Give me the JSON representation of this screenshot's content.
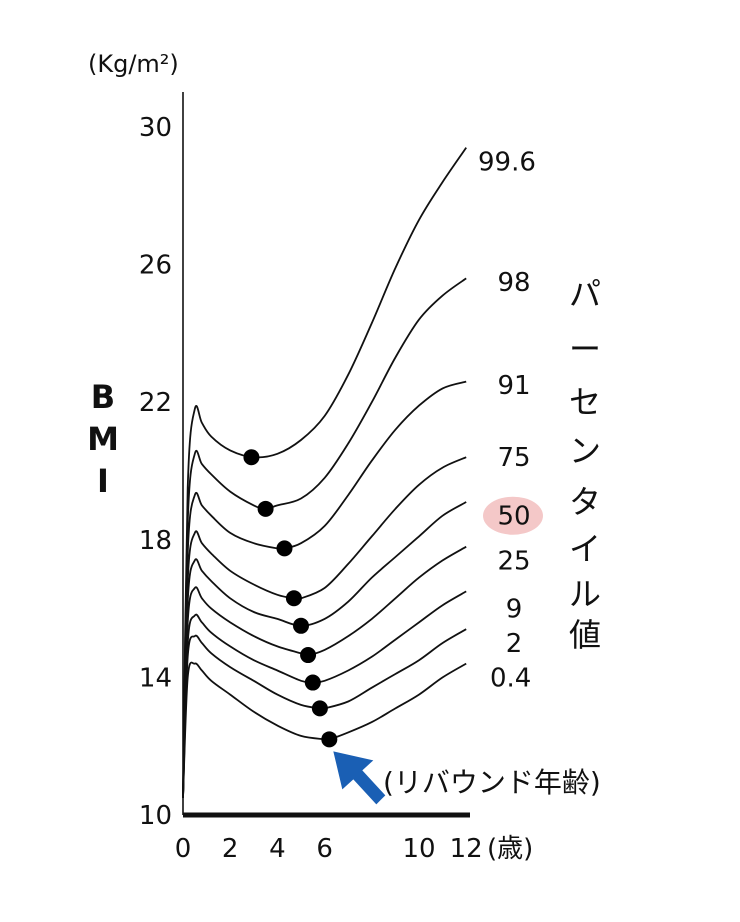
{
  "chart_data": {
    "type": "line",
    "unit_label": "(Kg/m²)",
    "ylabel_chars": [
      "B",
      "M",
      "I"
    ],
    "xunit_label": "(歳)",
    "vertical_label_chars": [
      "パ",
      "ー",
      "セ",
      "ン",
      "タ",
      "イ",
      "ル",
      "値"
    ],
    "x_ticks": [
      "0",
      "2",
      "4",
      "6",
      "10",
      "12"
    ],
    "y_ticks": [
      "10",
      "14",
      "18",
      "22",
      "26",
      "30"
    ],
    "xlim": [
      0,
      12
    ],
    "ylim": [
      10,
      30
    ],
    "highlight_color": "#f4c8c8",
    "arrow_color": "#1a5fb4",
    "annotation": {
      "label": "(リバウンド年齢)",
      "x": 6.2,
      "y": 12.2
    },
    "series": [
      {
        "label": "99.6",
        "x": [
          0,
          0.2,
          0.5,
          0.8,
          1.2,
          2,
          3,
          4,
          5,
          6,
          7,
          8,
          9,
          10,
          11,
          12
        ],
        "y": [
          10.5,
          19.5,
          21.8,
          21.4,
          21.0,
          20.6,
          20.4,
          20.5,
          20.9,
          21.6,
          22.8,
          24.3,
          25.9,
          27.3,
          28.4,
          29.4
        ]
      },
      {
        "label": "98",
        "x": [
          0,
          0.2,
          0.5,
          0.8,
          1.2,
          2,
          3,
          3.5,
          4,
          5,
          6,
          7,
          8,
          9,
          10,
          11,
          12
        ],
        "y": [
          10.5,
          18.5,
          20.5,
          20.2,
          19.9,
          19.4,
          19.0,
          18.9,
          19.0,
          19.2,
          19.8,
          20.8,
          22.0,
          23.3,
          24.4,
          25.1,
          25.6
        ]
      },
      {
        "label": "91",
        "x": [
          0,
          0.2,
          0.5,
          0.8,
          1.2,
          2,
          3,
          4,
          4.3,
          5,
          6,
          7,
          8,
          9,
          10,
          11,
          12
        ],
        "y": [
          10.5,
          17.6,
          19.3,
          19.0,
          18.7,
          18.2,
          17.9,
          17.75,
          17.75,
          17.9,
          18.4,
          19.3,
          20.3,
          21.2,
          21.9,
          22.4,
          22.6
        ]
      },
      {
        "label": "75",
        "x": [
          0,
          0.2,
          0.5,
          0.8,
          1.2,
          2,
          3,
          4,
          4.7,
          5,
          6,
          7,
          8,
          9,
          10,
          11,
          12
        ],
        "y": [
          10.5,
          16.8,
          18.2,
          17.9,
          17.6,
          17.1,
          16.7,
          16.4,
          16.3,
          16.3,
          16.6,
          17.3,
          18.1,
          18.9,
          19.6,
          20.1,
          20.4
        ]
      },
      {
        "label": "50",
        "x": [
          0,
          0.2,
          0.5,
          0.8,
          1.2,
          2,
          3,
          4,
          5,
          6,
          7,
          8,
          9,
          10,
          11,
          12
        ],
        "y": [
          10.5,
          16.2,
          17.4,
          17.1,
          16.8,
          16.3,
          15.9,
          15.7,
          15.5,
          15.7,
          16.2,
          16.9,
          17.5,
          18.1,
          18.7,
          19.1
        ]
      },
      {
        "label": "25",
        "x": [
          0,
          0.2,
          0.5,
          0.8,
          1.2,
          2,
          3,
          4,
          5,
          5.3,
          6,
          7,
          8,
          9,
          10,
          11,
          12
        ],
        "y": [
          10.5,
          15.6,
          16.6,
          16.3,
          16.0,
          15.6,
          15.2,
          14.9,
          14.7,
          14.65,
          14.8,
          15.2,
          15.7,
          16.3,
          16.9,
          17.4,
          17.8
        ]
      },
      {
        "label": "9",
        "x": [
          0,
          0.2,
          0.5,
          0.8,
          1.2,
          2,
          3,
          4,
          5,
          5.5,
          6,
          7,
          8,
          9,
          10,
          11,
          12
        ],
        "y": [
          10.5,
          15.0,
          15.8,
          15.6,
          15.3,
          14.9,
          14.5,
          14.2,
          13.9,
          13.85,
          13.9,
          14.2,
          14.6,
          15.1,
          15.6,
          16.1,
          16.5
        ]
      },
      {
        "label": "2",
        "x": [
          0,
          0.2,
          0.5,
          0.8,
          1.2,
          2,
          3,
          4,
          5,
          5.8,
          6,
          7,
          8,
          9,
          10,
          11,
          12
        ],
        "y": [
          10.5,
          14.6,
          15.2,
          15.0,
          14.7,
          14.3,
          13.9,
          13.5,
          13.2,
          13.1,
          13.1,
          13.3,
          13.7,
          14.1,
          14.5,
          15.0,
          15.4
        ]
      },
      {
        "label": "0.4",
        "x": [
          0,
          0.2,
          0.5,
          0.8,
          1.2,
          2,
          3,
          4,
          5,
          6,
          6.2,
          7,
          8,
          9,
          10,
          11,
          12
        ],
        "y": [
          10.5,
          14.0,
          14.4,
          14.2,
          13.9,
          13.5,
          13.0,
          12.6,
          12.3,
          12.2,
          12.2,
          12.4,
          12.7,
          13.1,
          13.5,
          14.0,
          14.4
        ]
      }
    ],
    "rebound_points": [
      {
        "x": 2.9,
        "y": 20.4
      },
      {
        "x": 3.5,
        "y": 18.9
      },
      {
        "x": 4.3,
        "y": 17.75
      },
      {
        "x": 4.7,
        "y": 16.3
      },
      {
        "x": 5.0,
        "y": 15.5
      },
      {
        "x": 5.3,
        "y": 14.65
      },
      {
        "x": 5.5,
        "y": 13.85
      },
      {
        "x": 5.8,
        "y": 13.1
      },
      {
        "x": 6.2,
        "y": 12.2
      }
    ],
    "series_label_y": {
      "99.6": 29.0,
      "98": 25.5,
      "91": 22.5,
      "75": 20.4,
      "50": 18.7,
      "25": 17.4,
      "9": 16.0,
      "2": 15.0,
      "0.4": 14.0
    },
    "highlighted_series": "50"
  }
}
